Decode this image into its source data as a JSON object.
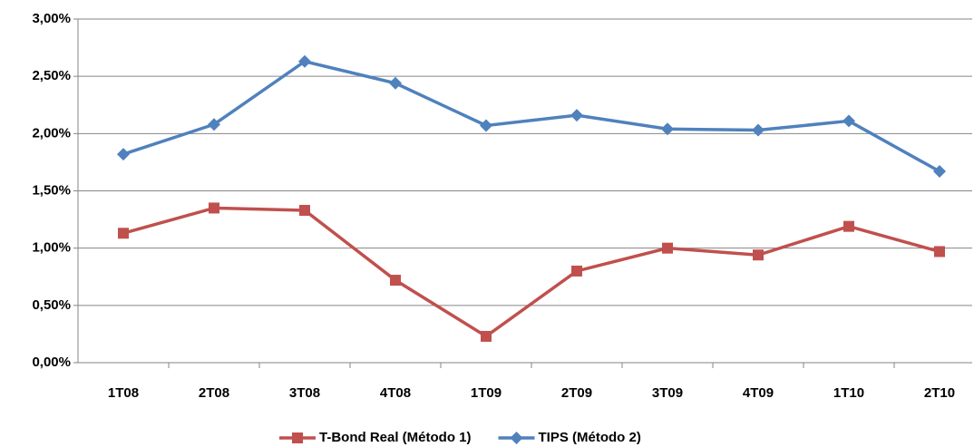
{
  "chart_data": {
    "type": "line",
    "categories": [
      "1T08",
      "2T08",
      "3T08",
      "4T08",
      "1T09",
      "2T09",
      "3T09",
      "4T09",
      "1T10",
      "2T10"
    ],
    "series": [
      {
        "name": "T-Bond Real (Método 1)",
        "color": "#c0504d",
        "marker": "square",
        "values": [
          1.13,
          1.35,
          1.33,
          0.72,
          0.23,
          0.8,
          1.0,
          0.94,
          1.19,
          0.97
        ]
      },
      {
        "name": "TIPS (Método 2)",
        "color": "#4f81bd",
        "marker": "diamond",
        "values": [
          1.82,
          2.08,
          2.63,
          2.44,
          2.07,
          2.16,
          2.04,
          2.03,
          2.11,
          1.67
        ]
      }
    ],
    "ylim": [
      0,
      3
    ],
    "yticks": [
      {
        "value": 0,
        "label": "0,00%"
      },
      {
        "value": 0.5,
        "label": "0,50%"
      },
      {
        "value": 1,
        "label": "1,00%"
      },
      {
        "value": 1.5,
        "label": "1,50%"
      },
      {
        "value": 2,
        "label": "2,00%"
      },
      {
        "value": 2.5,
        "label": "2,50%"
      },
      {
        "value": 3,
        "label": "3,00%"
      }
    ],
    "grid": true,
    "legend": "bottom"
  }
}
